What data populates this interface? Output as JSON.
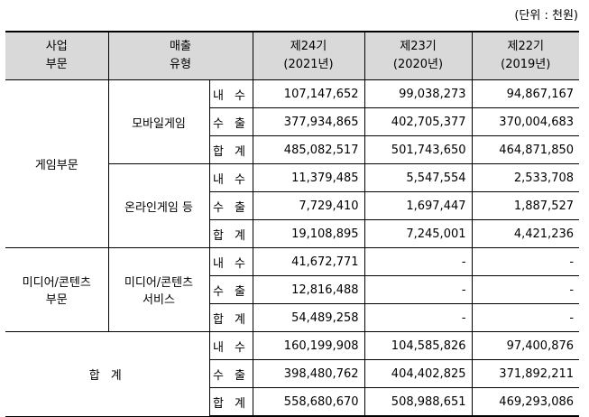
{
  "unit_label": "(단위 : 천원)",
  "header": {
    "segment": [
      "사업",
      "부문"
    ],
    "sales_type": [
      "매출",
      "유형"
    ],
    "periods": [
      {
        "term": "제24기",
        "year": "(2021년)"
      },
      {
        "term": "제23기",
        "year": "(2020년)"
      },
      {
        "term": "제22기",
        "year": "(2019년)"
      }
    ]
  },
  "kinds": {
    "domestic": "내 수",
    "export": "수 출",
    "total": "합 계"
  },
  "groups": [
    {
      "segment": "게임부문",
      "subs": [
        {
          "type": "모바일게임",
          "rows": [
            {
              "kind": "내 수",
              "values": [
                "107,147,652",
                "99,038,273",
                "94,867,167"
              ]
            },
            {
              "kind": "수 출",
              "values": [
                "377,934,865",
                "402,705,377",
                "370,004,683"
              ]
            },
            {
              "kind": "합 계",
              "values": [
                "485,082,517",
                "501,743,650",
                "464,871,850"
              ]
            }
          ]
        },
        {
          "type": "온라인게임 등",
          "rows": [
            {
              "kind": "내 수",
              "values": [
                "11,379,485",
                "5,547,554",
                "2,533,708"
              ]
            },
            {
              "kind": "수 출",
              "values": [
                "7,729,410",
                "1,697,447",
                "1,887,527"
              ]
            },
            {
              "kind": "합 계",
              "values": [
                "19,108,895",
                "7,245,001",
                "4,421,236"
              ]
            }
          ]
        }
      ]
    },
    {
      "segment": [
        "미디어/콘텐츠",
        "부문"
      ],
      "type": [
        "미디어/콘텐츠",
        "서비스"
      ],
      "rows": [
        {
          "kind": "내 수",
          "values": [
            "41,672,771",
            "-",
            "-"
          ]
        },
        {
          "kind": "수 출",
          "values": [
            "12,816,488",
            "-",
            "-"
          ]
        },
        {
          "kind": "합 계",
          "values": [
            "54,489,258",
            "-",
            "-"
          ]
        }
      ]
    }
  ],
  "grand_total": {
    "label": "합 계",
    "rows": [
      {
        "kind": "내 수",
        "values": [
          "160,199,908",
          "104,585,826",
          "97,400,876"
        ]
      },
      {
        "kind": "수 출",
        "values": [
          "398,480,762",
          "404,402,825",
          "371,892,211"
        ]
      },
      {
        "kind": "합 계",
        "values": [
          "558,680,670",
          "508,988,651",
          "469,293,086"
        ]
      }
    ]
  }
}
